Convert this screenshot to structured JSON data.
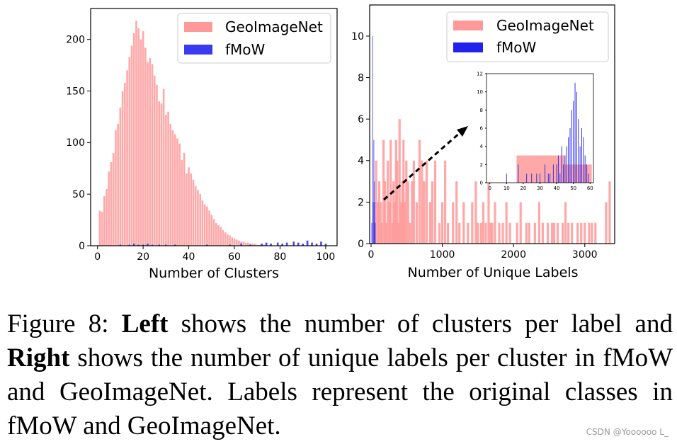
{
  "chart_data": [
    {
      "type": "bar",
      "xlabel": "Number of Clusters",
      "ylabel": "",
      "xlim": [
        -3,
        105
      ],
      "ylim": [
        0,
        230
      ],
      "xticks": [
        0,
        20,
        40,
        60,
        80,
        100
      ],
      "yticks": [
        0,
        50,
        100,
        150,
        200
      ],
      "legend_position": "upper-right",
      "series": [
        {
          "name": "GeoImageNet",
          "color": "#ff9999",
          "x": [
            1,
            2,
            3,
            4,
            5,
            6,
            7,
            8,
            9,
            10,
            11,
            12,
            13,
            14,
            15,
            16,
            17,
            18,
            19,
            20,
            21,
            22,
            23,
            24,
            25,
            26,
            27,
            28,
            29,
            30,
            31,
            32,
            33,
            34,
            35,
            36,
            37,
            38,
            39,
            40,
            41,
            42,
            43,
            44,
            45,
            46,
            47,
            48,
            49,
            50,
            51,
            52,
            53,
            54,
            55,
            56,
            57,
            58,
            59,
            60,
            61,
            62,
            63,
            64,
            65,
            66,
            67,
            68,
            69,
            70,
            71,
            72,
            73
          ],
          "values": [
            34,
            33,
            48,
            55,
            72,
            81,
            90,
            112,
            118,
            134,
            150,
            158,
            170,
            183,
            194,
            206,
            218,
            211,
            200,
            208,
            192,
            178,
            182,
            176,
            165,
            156,
            140,
            138,
            152,
            127,
            130,
            118,
            112,
            108,
            104,
            99,
            83,
            90,
            70,
            76,
            70,
            64,
            58,
            54,
            50,
            44,
            40,
            38,
            34,
            30,
            26,
            22,
            20,
            18,
            15,
            13,
            11,
            10,
            8,
            7,
            6,
            5,
            4,
            4,
            3,
            3,
            2,
            2,
            2,
            1,
            1,
            1,
            1
          ]
        },
        {
          "name": "fMoW",
          "color": "#3a3af0",
          "x": [
            10,
            14,
            16,
            18,
            20,
            22,
            24,
            27,
            30,
            34,
            48,
            58,
            63,
            67,
            72,
            74,
            76,
            79,
            81,
            83,
            86,
            88,
            90,
            92,
            94,
            96,
            98,
            100
          ],
          "values": [
            1,
            1,
            2,
            1,
            1,
            2,
            1,
            1,
            1,
            1,
            1,
            1,
            2,
            1,
            2,
            3,
            2,
            3,
            2,
            3,
            4,
            3,
            2,
            5,
            3,
            2,
            4,
            2
          ]
        }
      ]
    },
    {
      "type": "bar",
      "xlabel": "Number of Unique Labels",
      "ylabel": "",
      "xlim": [
        -20,
        3420
      ],
      "ylim": [
        0,
        11.5
      ],
      "xticks": [
        0,
        1000,
        2000,
        3000
      ],
      "yticks": [
        0,
        2,
        4,
        6,
        8,
        10
      ],
      "legend_position": "upper-right",
      "series": [
        {
          "name": "GeoImageNet",
          "color": "#ff9999",
          "x": [
            50,
            70,
            95,
            115,
            135,
            150,
            175,
            195,
            215,
            235,
            260,
            275,
            300,
            315,
            330,
            350,
            365,
            385,
            400,
            420,
            440,
            455,
            475,
            495,
            520,
            545,
            575,
            600,
            640,
            680,
            715,
            745,
            780,
            830,
            860,
            900,
            960,
            1000,
            1040,
            1080,
            1150,
            1200,
            1240,
            1300,
            1360,
            1420,
            1470,
            1500,
            1545,
            1575,
            1610,
            1650,
            1680,
            1700,
            1740,
            1800,
            1850,
            1900,
            1950,
            2050,
            2100,
            2180,
            2220,
            2300,
            2360,
            2410,
            2480,
            2540,
            2570,
            2620,
            2690,
            2730,
            2770,
            2820,
            2900,
            2950,
            3000,
            3060,
            3100,
            3150,
            3300,
            3350
          ],
          "values": [
            1,
            4,
            2,
            3,
            2,
            1,
            5,
            3,
            1,
            4,
            2,
            5,
            1,
            3,
            2,
            5,
            4,
            1,
            6,
            2,
            3,
            5,
            2,
            4,
            3,
            1,
            3,
            4,
            2,
            5,
            4,
            3,
            4,
            2,
            3,
            4,
            1,
            2,
            4,
            1,
            2,
            3,
            1,
            2,
            1,
            2,
            3,
            1,
            1,
            2,
            1,
            3,
            1,
            1,
            2,
            1,
            1,
            2,
            1,
            1,
            2,
            1,
            1,
            1,
            2,
            1,
            1,
            1,
            1,
            1,
            1,
            2,
            1,
            1,
            1,
            1,
            1,
            1,
            1,
            1,
            2,
            3
          ]
        },
        {
          "name": "fMoW",
          "color": "#2222ee",
          "x": [
            10,
            22,
            30,
            38,
            45,
            52,
            58
          ],
          "values": [
            1,
            10,
            2,
            5,
            3,
            2,
            1
          ]
        }
      ]
    },
    {
      "type": "bar",
      "xlabel": "",
      "ylabel": "",
      "xlim": [
        -2,
        62
      ],
      "ylim": [
        0,
        12
      ],
      "xticks": [
        0,
        10,
        20,
        30,
        40,
        50,
        60
      ],
      "yticks": [
        0,
        2,
        4,
        6,
        8,
        10,
        12
      ],
      "series": [
        {
          "name": "GeoImageNet",
          "color": "#ff9999",
          "x": [
            16,
            61
          ],
          "values": [
            3,
            2
          ]
        },
        {
          "name": "fMoW",
          "color": "#2222ee",
          "x": [
            10,
            17,
            22,
            25,
            28,
            30,
            33,
            35,
            36,
            38,
            40,
            41,
            42,
            43,
            44,
            45,
            46,
            47,
            48,
            49,
            50,
            51,
            52,
            53,
            54,
            55,
            56,
            57,
            58,
            59
          ],
          "values": [
            1,
            2,
            1,
            1,
            1,
            1,
            2,
            1,
            1,
            2,
            2,
            3,
            1,
            4,
            2,
            3,
            4,
            5,
            6,
            8,
            9,
            11,
            10,
            7,
            4,
            6,
            5,
            3,
            2,
            1
          ]
        }
      ]
    }
  ],
  "caption": {
    "figure_label": "Figure 8: ",
    "left_bold": "Left",
    "part1": " shows the number of clusters per label and ",
    "right_bold": "Right",
    "part2": " shows the number of unique labels per cluster in fMoW and GeoImageNet.  Labels represent the original classes in fMoW and GeoImageNet."
  },
  "watermark": "CSDN @Yoooooo L_"
}
